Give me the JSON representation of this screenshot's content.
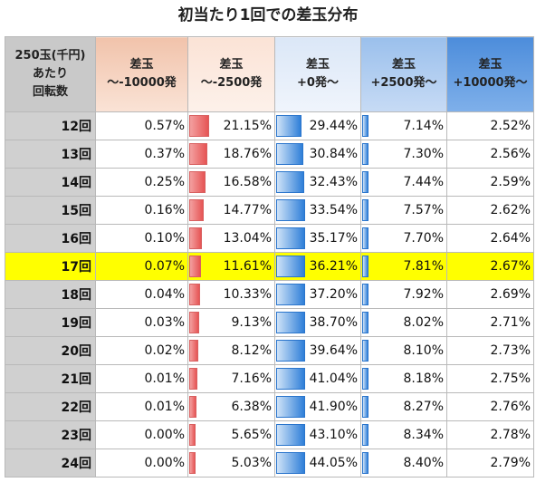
{
  "title": "初当たり1回での差玉分布",
  "header": {
    "spins_label": [
      "250玉(千円)",
      "あたり",
      "回転数"
    ],
    "columns": [
      [
        "差玉",
        "～-10000発"
      ],
      [
        "差玉",
        "～-2500発"
      ],
      [
        "差玉",
        "+0発～"
      ],
      [
        "差玉",
        "+2500発～"
      ],
      [
        "差玉",
        "+10000発～"
      ]
    ]
  },
  "highlight_row": "17回",
  "bar_columns": [
    1,
    2,
    3
  ],
  "colors": {
    "highlight": "#ffff00",
    "red_bar": "#e65555",
    "blue_bar": "#2f7fd8"
  },
  "rows": [
    {
      "spins": "12回",
      "values": [
        "0.57%",
        "21.15%",
        "29.44%",
        "7.14%",
        "2.52%"
      ]
    },
    {
      "spins": "13回",
      "values": [
        "0.37%",
        "18.76%",
        "30.84%",
        "7.30%",
        "2.56%"
      ]
    },
    {
      "spins": "14回",
      "values": [
        "0.25%",
        "16.58%",
        "32.43%",
        "7.44%",
        "2.59%"
      ]
    },
    {
      "spins": "15回",
      "values": [
        "0.16%",
        "14.77%",
        "33.54%",
        "7.57%",
        "2.62%"
      ]
    },
    {
      "spins": "16回",
      "values": [
        "0.10%",
        "13.04%",
        "35.17%",
        "7.70%",
        "2.64%"
      ]
    },
    {
      "spins": "17回",
      "values": [
        "0.07%",
        "11.61%",
        "36.21%",
        "7.81%",
        "2.67%"
      ]
    },
    {
      "spins": "18回",
      "values": [
        "0.04%",
        "10.33%",
        "37.20%",
        "7.92%",
        "2.69%"
      ]
    },
    {
      "spins": "19回",
      "values": [
        "0.03%",
        "9.13%",
        "38.70%",
        "8.02%",
        "2.71%"
      ]
    },
    {
      "spins": "20回",
      "values": [
        "0.02%",
        "8.12%",
        "39.64%",
        "8.10%",
        "2.73%"
      ]
    },
    {
      "spins": "21回",
      "values": [
        "0.01%",
        "7.16%",
        "41.04%",
        "8.18%",
        "2.75%"
      ]
    },
    {
      "spins": "22回",
      "values": [
        "0.01%",
        "6.38%",
        "41.90%",
        "8.27%",
        "2.76%"
      ]
    },
    {
      "spins": "23回",
      "values": [
        "0.00%",
        "5.65%",
        "43.10%",
        "8.34%",
        "2.78%"
      ]
    },
    {
      "spins": "24回",
      "values": [
        "0.00%",
        "5.03%",
        "44.05%",
        "8.40%",
        "2.79%"
      ]
    }
  ]
}
